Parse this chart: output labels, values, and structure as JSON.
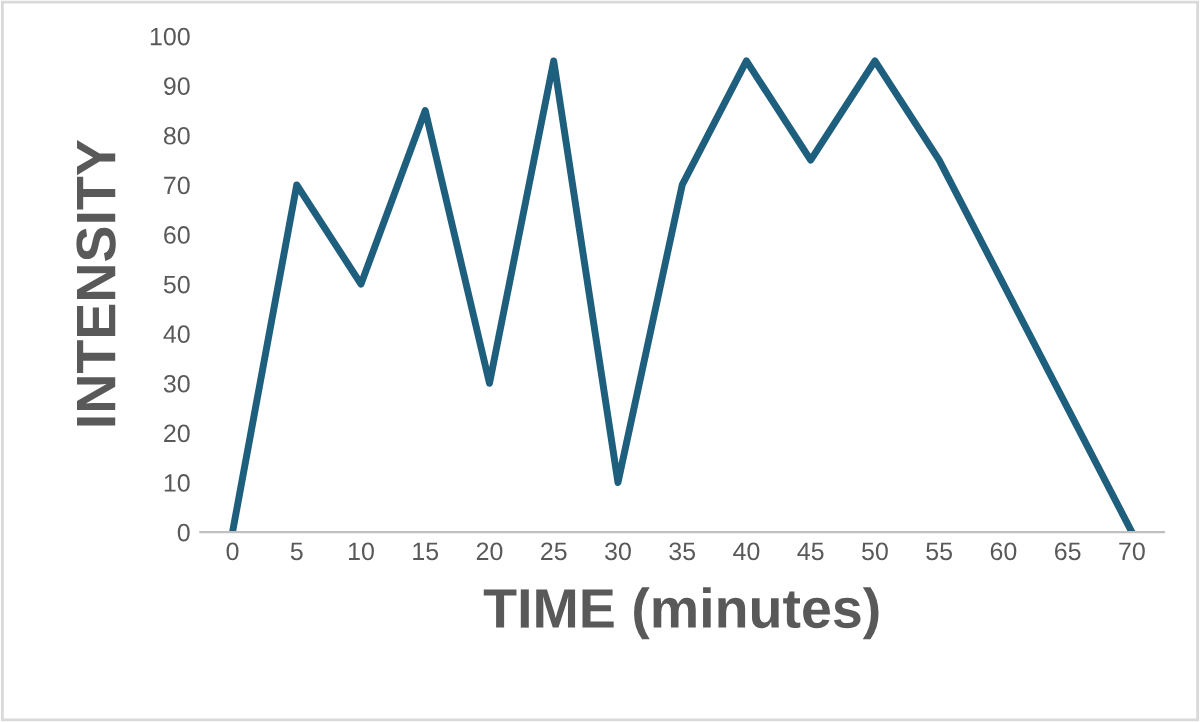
{
  "chart_data": {
    "type": "line",
    "xlabel": "TIME (minutes)",
    "ylabel": "INTENSITY",
    "categories": [
      "0",
      "5",
      "10",
      "15",
      "20",
      "25",
      "30",
      "35",
      "40",
      "45",
      "50",
      "55",
      "60",
      "65",
      "70"
    ],
    "series": [
      {
        "color": "#1f5f7e",
        "values": [
          0,
          70,
          50,
          85,
          30,
          95,
          10,
          70,
          95,
          75,
          95,
          75,
          50,
          25,
          0
        ]
      }
    ],
    "ylim": [
      0,
      100
    ],
    "yticks": [
      0,
      10,
      20,
      30,
      40,
      50,
      60,
      70,
      80,
      90,
      100
    ],
    "grid": false,
    "legend": false,
    "marker": "none",
    "line_style": "solid"
  }
}
